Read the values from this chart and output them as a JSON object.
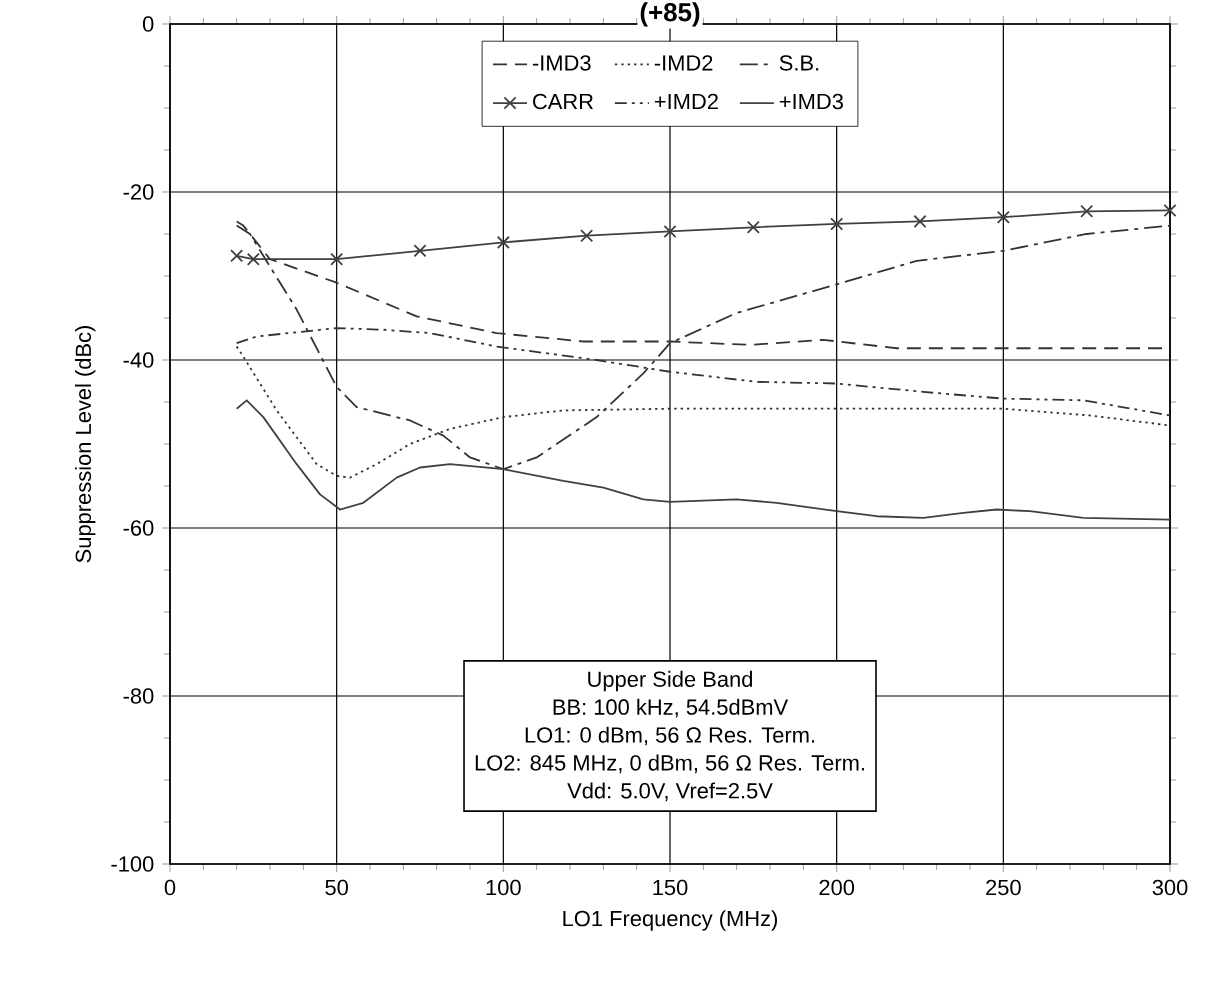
{
  "chart_data": {
    "type": "line",
    "title": "(+85)",
    "xlabel": "LO1 Frequency (MHz)",
    "ylabel": "Suppression Level (dBc)",
    "xlim": [
      0,
      300
    ],
    "ylim": [
      -100,
      0
    ],
    "xticks": [
      0,
      50,
      100,
      150,
      200,
      250,
      300
    ],
    "yticks": [
      -100,
      -80,
      -60,
      -40,
      -20,
      0
    ],
    "grid": true,
    "legend": "top",
    "annotations": [
      "Upper Side Band",
      "BB: 100 kHz, 54.5dBmV",
      "LO1: 0 dBm, 56 Ω Res. Term.",
      "LO2: 845 MHz, 0 dBm, 56 Ω Res. Term.",
      "Vdd: 5.0V, Vref=2.5V"
    ],
    "series": [
      {
        "name": "-IMD3",
        "color": "#333333",
        "line_style": "dashed",
        "marker": "none",
        "x": [
          20,
          22,
          30,
          50,
          74,
          98,
          124,
          150,
          174,
          196,
          218,
          300
        ],
        "values": [
          -23.5,
          -24,
          -28,
          -30.8,
          -34.8,
          -36.8,
          -37.8,
          -37.8,
          -38.2,
          -37.6,
          -38.6,
          -38.6
        ]
      },
      {
        "name": "-IMD2",
        "color": "#333333",
        "line_style": "dotted",
        "marker": "none",
        "x": [
          20,
          22,
          32,
          44,
          50,
          54,
          62,
          72,
          84,
          100,
          118,
          150,
          250,
          276,
          300
        ],
        "values": [
          -38.4,
          -39.6,
          -46,
          -52.4,
          -53.8,
          -54,
          -52.4,
          -50,
          -48.2,
          -46.8,
          -46,
          -45.8,
          -45.8,
          -46.6,
          -47.8
        ]
      },
      {
        "name": "S.B.",
        "color": "#333333",
        "line_style": "dashdot",
        "marker": "none",
        "x": [
          20,
          24,
          28,
          38,
          50,
          56,
          72,
          82,
          90,
          100,
          110,
          128,
          142,
          150,
          170,
          200,
          224,
          250,
          275,
          300
        ],
        "values": [
          -24,
          -25,
          -27.6,
          -34,
          -43.2,
          -45.6,
          -47.2,
          -49,
          -51.6,
          -53,
          -51.6,
          -46.8,
          -41.6,
          -38,
          -34.4,
          -31,
          -28.2,
          -27,
          -25,
          -24
        ]
      },
      {
        "name": "CARR",
        "color": "#404040",
        "line_style": "solid",
        "marker": "cross",
        "x": [
          20,
          25,
          50,
          75,
          100,
          125,
          150,
          175,
          200,
          225,
          250,
          275,
          300
        ],
        "values": [
          -27.6,
          -28,
          -28,
          -27,
          -26,
          -25.2,
          -24.7,
          -24.2,
          -23.8,
          -23.5,
          -23,
          -22.3,
          -22.2
        ]
      },
      {
        "name": "+IMD2",
        "color": "#333333",
        "line_style": "dashdotdot",
        "marker": "none",
        "x": [
          20,
          26,
          50,
          64,
          78,
          98,
          128,
          150,
          176,
          200,
          226,
          250,
          274,
          300
        ],
        "values": [
          -38,
          -37.2,
          -36.2,
          -36.4,
          -36.8,
          -38.4,
          -40,
          -41.4,
          -42.6,
          -42.8,
          -43.8,
          -44.6,
          -44.8,
          -46.6
        ]
      },
      {
        "name": "+IMD3",
        "color": "#404040",
        "line_style": "solid",
        "marker": "none",
        "x": [
          20,
          23,
          28,
          38,
          45,
          51,
          58,
          68,
          75,
          84,
          100,
          118,
          130,
          142,
          150,
          170,
          182,
          200,
          212,
          226,
          238,
          248,
          258,
          274,
          300
        ],
        "values": [
          -45.8,
          -44.8,
          -46.8,
          -52.4,
          -56,
          -57.8,
          -57,
          -54,
          -52.8,
          -52.4,
          -53,
          -54.4,
          -55.2,
          -56.6,
          -56.9,
          -56.6,
          -57,
          -58,
          -58.6,
          -58.8,
          -58.2,
          -57.8,
          -58,
          -58.8,
          -59
        ]
      }
    ]
  }
}
